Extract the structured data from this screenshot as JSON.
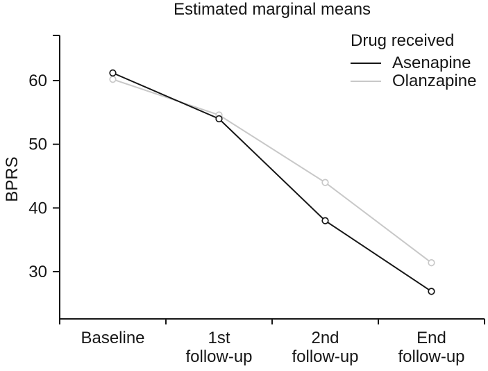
{
  "figure": {
    "title": "Estimated marginal means",
    "ylabel": "BPRS"
  },
  "legend": {
    "title": "Drug received",
    "items": [
      {
        "label": "Asenapine",
        "color": "#161616"
      },
      {
        "label": "Olanzapine",
        "color": "#c8c8c8"
      }
    ]
  },
  "chart_data": {
    "type": "line",
    "title": "Estimated marginal means",
    "xlabel": "",
    "ylabel": "BPRS",
    "categories": [
      "Baseline",
      "1st follow-up",
      "2nd follow-up",
      "End follow-up"
    ],
    "category_display": [
      "Baseline",
      "1st\nfollow-up",
      "2nd\nfollow-up",
      "End\nfollow-up"
    ],
    "series": [
      {
        "name": "Asenapine",
        "color": "#161616",
        "values": [
          61.2,
          54.0,
          38.0,
          26.9
        ]
      },
      {
        "name": "Olanzapine",
        "color": "#c8c8c8",
        "values": [
          60.2,
          54.6,
          44.0,
          31.4
        ]
      }
    ],
    "yticks": [
      30,
      40,
      50,
      60
    ],
    "ylim": [
      22.5,
      67.1
    ],
    "grid": false,
    "marker": "open-circle",
    "legend_title": "Drug received",
    "legend_position": "top-right",
    "axis_color": "#161616"
  }
}
